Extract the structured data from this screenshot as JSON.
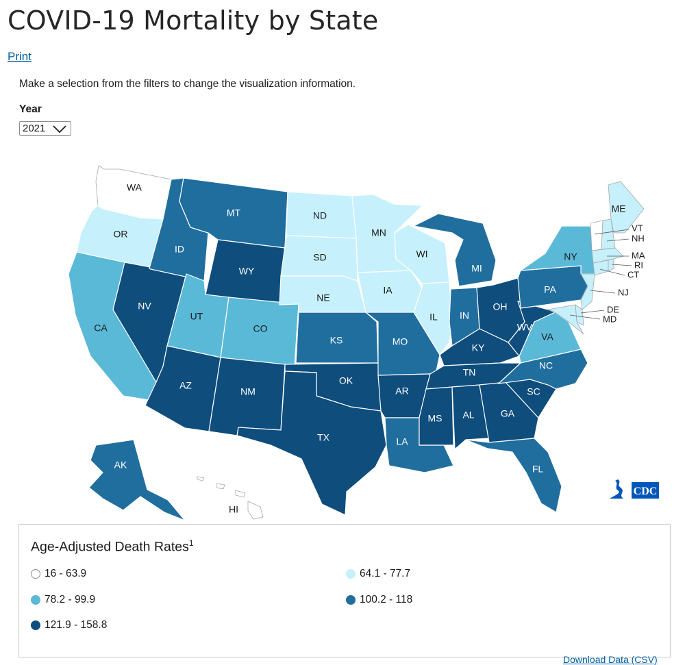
{
  "page": {
    "title": "COVID-19 Mortality by State",
    "print_label": "Print",
    "instructions": "Make a selection from the filters to change the visualization information.",
    "download_label": "Download Data (CSV)"
  },
  "filters": {
    "year_label": "Year",
    "year_value": "2021"
  },
  "legend": {
    "title": "Age-Adjusted Death Rates",
    "footnote_marker": "1",
    "bins": [
      {
        "label": "16 - 63.9",
        "color": "#ffffff"
      },
      {
        "label": "64.1 - 77.7",
        "color": "#c6f0fb"
      },
      {
        "label": "78.2 - 99.9",
        "color": "#5ab9d7"
      },
      {
        "label": "100.2 - 118",
        "color": "#206e9e"
      },
      {
        "label": "121.9 - 158.8",
        "color": "#0f4d7d"
      }
    ]
  },
  "states": [
    {
      "abbr": "WA",
      "bin": 0
    },
    {
      "abbr": "OR",
      "bin": 1
    },
    {
      "abbr": "CA",
      "bin": 2
    },
    {
      "abbr": "NV",
      "bin": 4
    },
    {
      "abbr": "ID",
      "bin": 3
    },
    {
      "abbr": "MT",
      "bin": 3
    },
    {
      "abbr": "WY",
      "bin": 4
    },
    {
      "abbr": "UT",
      "bin": 2
    },
    {
      "abbr": "CO",
      "bin": 2
    },
    {
      "abbr": "AZ",
      "bin": 4
    },
    {
      "abbr": "NM",
      "bin": 4
    },
    {
      "abbr": "ND",
      "bin": 1
    },
    {
      "abbr": "SD",
      "bin": 1
    },
    {
      "abbr": "NE",
      "bin": 1
    },
    {
      "abbr": "KS",
      "bin": 3
    },
    {
      "abbr": "OK",
      "bin": 4
    },
    {
      "abbr": "TX",
      "bin": 4
    },
    {
      "abbr": "MN",
      "bin": 1
    },
    {
      "abbr": "IA",
      "bin": 1
    },
    {
      "abbr": "MO",
      "bin": 3
    },
    {
      "abbr": "AR",
      "bin": 4
    },
    {
      "abbr": "LA",
      "bin": 3
    },
    {
      "abbr": "WI",
      "bin": 1
    },
    {
      "abbr": "IL",
      "bin": 1
    },
    {
      "abbr": "MI",
      "bin": 3
    },
    {
      "abbr": "IN",
      "bin": 3
    },
    {
      "abbr": "OH",
      "bin": 4
    },
    {
      "abbr": "KY",
      "bin": 4
    },
    {
      "abbr": "TN",
      "bin": 4
    },
    {
      "abbr": "MS",
      "bin": 4
    },
    {
      "abbr": "AL",
      "bin": 4
    },
    {
      "abbr": "GA",
      "bin": 4
    },
    {
      "abbr": "FL",
      "bin": 3
    },
    {
      "abbr": "SC",
      "bin": 4
    },
    {
      "abbr": "NC",
      "bin": 3
    },
    {
      "abbr": "VA",
      "bin": 2
    },
    {
      "abbr": "WV",
      "bin": 4
    },
    {
      "abbr": "PA",
      "bin": 3
    },
    {
      "abbr": "NY",
      "bin": 2
    },
    {
      "abbr": "ME",
      "bin": 1
    },
    {
      "abbr": "VT",
      "bin": 0
    },
    {
      "abbr": "NH",
      "bin": 1
    },
    {
      "abbr": "MA",
      "bin": 1
    },
    {
      "abbr": "RI",
      "bin": 1
    },
    {
      "abbr": "CT",
      "bin": 1
    },
    {
      "abbr": "NJ",
      "bin": 1
    },
    {
      "abbr": "DE",
      "bin": 1
    },
    {
      "abbr": "MD",
      "bin": 1
    },
    {
      "abbr": "AK",
      "bin": 3
    },
    {
      "abbr": "HI",
      "bin": 0
    }
  ],
  "icons": {
    "year_dropdown": "chevron-down-icon",
    "agency_logo": "cdc-logo-icon"
  },
  "colors": {
    "link": "#005ea2"
  }
}
